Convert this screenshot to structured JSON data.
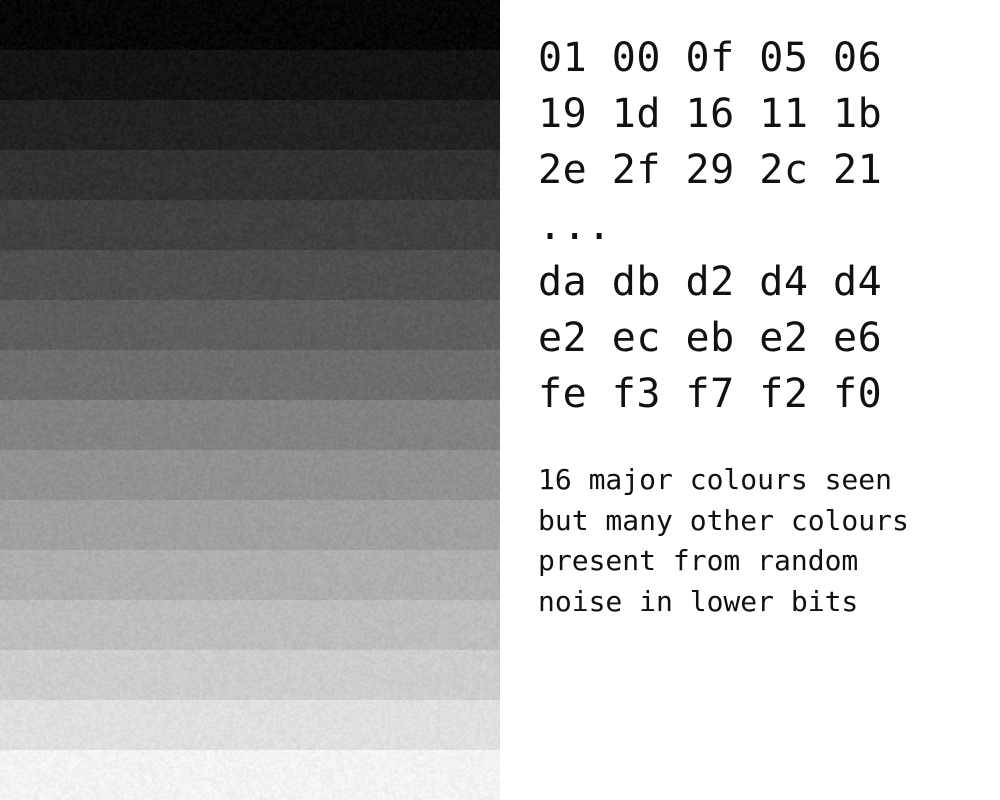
{
  "gradient_bands": [
    {
      "color": "#070707"
    },
    {
      "color": "#141414"
    },
    {
      "color": "#232323"
    },
    {
      "color": "#323232"
    },
    {
      "color": "#414141"
    },
    {
      "color": "#505050"
    },
    {
      "color": "#5f5f5f"
    },
    {
      "color": "#6e6e6e"
    },
    {
      "color": "#838383"
    },
    {
      "color": "#929292"
    },
    {
      "color": "#a1a1a1"
    },
    {
      "color": "#b0b0b0"
    },
    {
      "color": "#bfbfbf"
    },
    {
      "color": "#cecece"
    },
    {
      "color": "#e0e0e0"
    },
    {
      "color": "#f3f3f3"
    }
  ],
  "hex_rows": [
    "01 00 0f 05 06",
    "19 1d 16 11 1b",
    "2e 2f 29 2c 21",
    "...",
    "da db d2 d4 d4",
    "e2 ec eb e2 e6",
    "fe f3 f7 f2 f0"
  ],
  "caption_lines": [
    "16 major colours seen",
    "but many other colours",
    "present from random",
    "noise in lower bits"
  ]
}
